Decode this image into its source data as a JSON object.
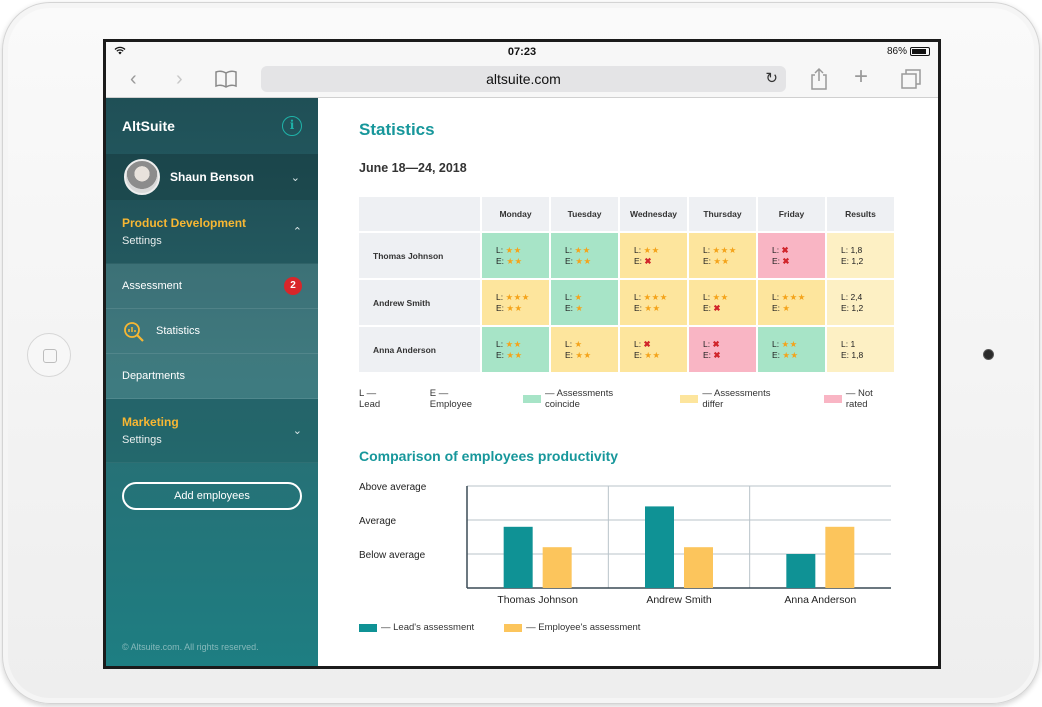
{
  "browser": {
    "time": "07:23",
    "battery": "86%",
    "url": "altsuite.com"
  },
  "sidebar": {
    "brand": "AltSuite",
    "user": "Shaun Benson",
    "groups": [
      {
        "title": "Product Development",
        "sub": "Settings"
      },
      {
        "title": "Marketing",
        "sub": "Settings"
      }
    ],
    "items": [
      {
        "label": "Assessment",
        "badge": "2"
      },
      {
        "label": "Statistics"
      },
      {
        "label": "Departments"
      }
    ],
    "add_button": "Add employees",
    "footer": "© Altsuite.com. All rights reserved."
  },
  "page": {
    "title": "Statistics",
    "date": "June 18—24, 2018"
  },
  "table": {
    "columns": [
      "Monday",
      "Tuesday",
      "Wednesday",
      "Thursday",
      "Friday",
      "Results"
    ],
    "rows": [
      {
        "name": "Thomas Johnson",
        "cells": [
          {
            "color": "g",
            "L": "★★",
            "E": "★★"
          },
          {
            "color": "g",
            "L": "★★",
            "E": "★★"
          },
          {
            "color": "y",
            "L": "★★",
            "E": "✖"
          },
          {
            "color": "y",
            "L": "★★★",
            "E": "★★"
          },
          {
            "color": "p",
            "L": "✖",
            "E": "✖"
          }
        ],
        "results": {
          "L": "1,8",
          "E": "1,2"
        }
      },
      {
        "name": "Andrew Smith",
        "cells": [
          {
            "color": "y",
            "L": "★★★",
            "E": "★★"
          },
          {
            "color": "g",
            "L": "★",
            "E": "★"
          },
          {
            "color": "y",
            "L": "★★★",
            "E": "★★"
          },
          {
            "color": "y",
            "L": "★★",
            "E": "✖"
          },
          {
            "color": "y",
            "L": "★★★",
            "E": "★"
          }
        ],
        "results": {
          "L": "2,4",
          "E": "1,2"
        }
      },
      {
        "name": "Anna Anderson",
        "cells": [
          {
            "color": "g",
            "L": "★★",
            "E": "★★"
          },
          {
            "color": "y",
            "L": "★",
            "E": "★★"
          },
          {
            "color": "y",
            "L": "✖",
            "E": "★★"
          },
          {
            "color": "p",
            "L": "✖",
            "E": "✖"
          },
          {
            "color": "g",
            "L": "★★",
            "E": "★★"
          }
        ],
        "results": {
          "L": "1",
          "E": "1,8"
        }
      }
    ]
  },
  "legend": {
    "lead": "L — Lead",
    "employee": "E — Employee",
    "coincide": "— Assessments coincide",
    "differ": "— Assessments differ",
    "not_rated": "— Not rated",
    "colors": {
      "coincide": "#a7e4c7",
      "differ": "#fde59d",
      "not_rated": "#f9b5c4"
    }
  },
  "chart_title": "Comparison of employees productivity",
  "chart_data": {
    "type": "bar",
    "categories": [
      "Thomas Johnson",
      "Andrew Smith",
      "Anna Anderson"
    ],
    "y_tick_labels": [
      "Above average",
      "Average",
      "Below average"
    ],
    "ylim": [
      0,
      3
    ],
    "series": [
      {
        "name": "— Lead's assessment",
        "color": "#0f9295",
        "values": [
          1.8,
          2.4,
          1.0
        ]
      },
      {
        "name": "— Employee's assessment",
        "color": "#fcc55c",
        "values": [
          1.2,
          1.2,
          1.8
        ]
      }
    ]
  }
}
